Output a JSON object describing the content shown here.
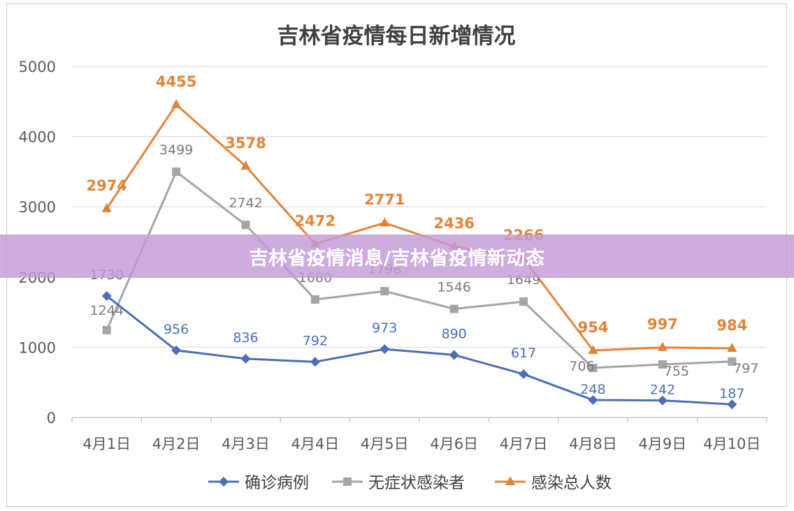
{
  "banner": {
    "text": "吉林省疫情消息/吉林省疫情新动态"
  },
  "chart_data": {
    "type": "line",
    "title": "吉林省疫情每日新增情况",
    "categories": [
      "4月1日",
      "4月2日",
      "4月3日",
      "4月4日",
      "4月5日",
      "4月6日",
      "4月7日",
      "4月8日",
      "4月9日",
      "4月10日"
    ],
    "ylim": [
      0,
      5000
    ],
    "yticks": [
      0,
      1000,
      2000,
      3000,
      4000,
      5000
    ],
    "grid": true,
    "legend_position": "bottom",
    "series": [
      {
        "name": "确诊病例",
        "color": "#4a6fb5",
        "marker": "diamond",
        "values": [
          1730,
          956,
          836,
          792,
          973,
          890,
          617,
          248,
          242,
          187
        ]
      },
      {
        "name": "无症状感染者",
        "color": "#a5a5a5",
        "marker": "square",
        "values": [
          1244,
          3499,
          2742,
          1680,
          1798,
          1546,
          1649,
          706,
          755,
          797
        ]
      },
      {
        "name": "感染总人数",
        "color": "#e0843a",
        "marker": "triangle",
        "values": [
          2974,
          4455,
          3578,
          2472,
          2771,
          2436,
          2266,
          954,
          997,
          984
        ]
      }
    ]
  }
}
